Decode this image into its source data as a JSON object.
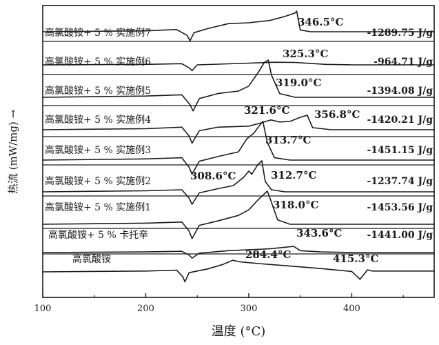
{
  "chart_data": {
    "type": "line",
    "xlabel": "温度 (°C)",
    "ylabel": "热流 (mW/mg) →",
    "xlim": [
      100,
      480
    ],
    "xticks": [
      "100",
      "200",
      "300",
      "400"
    ],
    "series": [
      {
        "name": "高氯酸铵+ 5 % 实施例7",
        "enthalpy": "-1289.75 J/g",
        "peak_labels": [
          "346.5°C"
        ],
        "x": [
          100,
          200,
          230,
          240,
          243,
          247,
          260,
          280,
          300,
          320,
          335,
          345,
          346.5,
          350,
          360,
          400,
          480
        ],
        "y": [
          0,
          0.1,
          0.25,
          -0.4,
          -1.0,
          -0.1,
          0.35,
          0.9,
          1.0,
          1.25,
          1.7,
          2.1,
          2.3,
          0.2,
          0,
          0,
          0
        ]
      },
      {
        "name": "高氯酸铵+ 5 % 实施例6",
        "enthalpy": "-964.71 J/g",
        "peak_labels": [
          "325.3°C"
        ],
        "x": [
          100,
          200,
          235,
          242,
          245,
          250,
          270,
          300,
          325.3,
          345,
          360,
          375,
          400,
          480
        ],
        "y": [
          0,
          0.1,
          0.25,
          -0.6,
          -1.2,
          0.0,
          0.15,
          0.35,
          0.55,
          0.5,
          0.3,
          0.1,
          0,
          0
        ]
      },
      {
        "name": "高氯酸铵+ 5 % 实施例5",
        "enthalpy": "-1394.08 J/g",
        "peak_labels": [
          "319.0°C"
        ],
        "x": [
          100,
          200,
          235,
          243,
          246,
          252,
          270,
          290,
          300,
          310,
          315,
          319,
          322,
          330,
          345,
          400,
          480
        ],
        "y": [
          0,
          0.1,
          0.2,
          -0.6,
          -1.1,
          -0.1,
          0.3,
          0.5,
          0.9,
          2.1,
          2.8,
          3.0,
          1.8,
          0.3,
          0,
          0,
          0
        ]
      },
      {
        "name": "高氯酸铵+ 5 % 实施例4",
        "enthalpy": "-1420.21 J/g",
        "peak_labels": [
          "321.6°C",
          "356.8°C"
        ],
        "x": [
          100,
          200,
          235,
          242,
          245,
          252,
          270,
          300,
          310,
          321.6,
          330,
          340,
          350,
          356.8,
          362,
          380,
          400,
          480
        ],
        "y": [
          0,
          0.1,
          0.25,
          -0.6,
          -1.3,
          -0.1,
          0.25,
          0.35,
          0.6,
          0.95,
          0.75,
          0.8,
          1.2,
          1.4,
          0.2,
          0,
          0,
          0
        ]
      },
      {
        "name": "高氯酸铵+ 5 % 实施例3",
        "enthalpy": "-1451.15 J/g",
        "peak_labels": [
          "313.7°C"
        ],
        "x": [
          100,
          200,
          235,
          242,
          245,
          252,
          270,
          290,
          298,
          305,
          310,
          313.7,
          318,
          325,
          340,
          400,
          480
        ],
        "y": [
          0,
          0.1,
          0.2,
          -0.6,
          -1.2,
          -0.1,
          0.3,
          0.7,
          1.8,
          2.3,
          2.9,
          3.3,
          1.5,
          0.2,
          0,
          0,
          0
        ]
      },
      {
        "name": "高氯酸铵+ 5 % 实施例2",
        "enthalpy": "-1237.74 J/g",
        "peak_labels": [
          "308.6°C",
          "312.7°C"
        ],
        "x": [
          100,
          200,
          235,
          242,
          245,
          252,
          270,
          285,
          295,
          300,
          303,
          308.6,
          312.7,
          316,
          322,
          335,
          400,
          480
        ],
        "y": [
          0,
          0.1,
          0.2,
          -0.6,
          -1.2,
          -0.1,
          0.3,
          0.6,
          1.4,
          2.0,
          1.7,
          2.6,
          3.0,
          1.0,
          0.2,
          0,
          0,
          0
        ]
      },
      {
        "name": "高氯酸铵+ 5 % 实施例1",
        "enthalpy": "-1453.56 J/g",
        "peak_labels": [
          "318.0°C"
        ],
        "x": [
          100,
          200,
          235,
          242,
          245,
          252,
          270,
          290,
          300,
          310,
          318,
          322,
          328,
          340,
          400,
          480
        ],
        "y": [
          0,
          0.1,
          0.2,
          -0.6,
          -1.3,
          -0.1,
          0.3,
          0.8,
          1.3,
          2.3,
          3.0,
          2.0,
          0.4,
          0,
          0,
          0
        ]
      },
      {
        "name": "高氯酸铵+ 5 % 卡托辛",
        "enthalpy": "-1441.00 J/g",
        "peak_labels": [
          "343.6°C"
        ],
        "x": [
          100,
          200,
          235,
          242,
          245,
          252,
          280,
          320,
          335,
          343.6,
          350,
          370,
          400,
          480
        ],
        "y": [
          0,
          0.1,
          0.2,
          -0.4,
          -0.9,
          -0.1,
          0.3,
          0.6,
          0.85,
          1.0,
          0.3,
          0.1,
          0,
          0
        ]
      },
      {
        "name": "高氯酸铵",
        "enthalpy": "",
        "peak_labels": [
          "284.4°C",
          "415.3°C"
        ],
        "x": [
          100,
          200,
          230,
          236,
          238,
          242,
          260,
          275,
          284.4,
          292,
          310,
          340,
          370,
          400,
          408,
          415.3,
          420,
          480
        ],
        "y": [
          0,
          0.1,
          0.2,
          -0.6,
          -1.2,
          -0.1,
          0.35,
          0.9,
          1.4,
          1.2,
          1.0,
          0.7,
          0.4,
          0.05,
          -0.9,
          0.25,
          0.1,
          0.1
        ]
      }
    ]
  }
}
